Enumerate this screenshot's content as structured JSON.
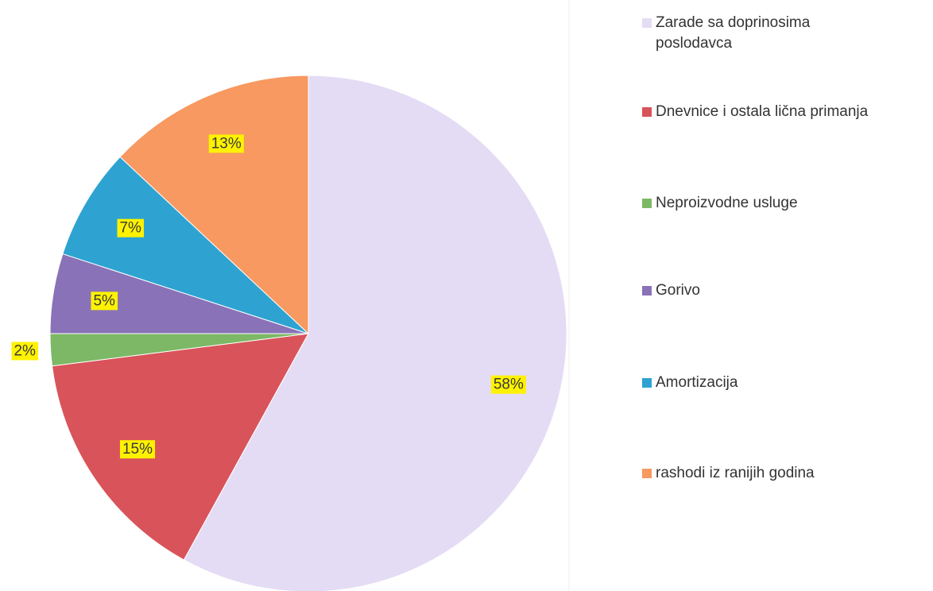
{
  "chart_data": {
    "type": "pie",
    "categories": [
      "Zarade sa doprinosima poslodavca",
      "Dnevnice i ostala lična primanja",
      "Neproizvodne usluge",
      "Gorivo",
      "Amortizacija",
      "rashodi iz ranijih godina"
    ],
    "values": [
      58,
      15,
      2,
      5,
      7,
      13
    ],
    "value_labels": [
      "58%",
      "15%",
      "2%",
      "5%",
      "7%",
      "13%"
    ],
    "colors": [
      "#e4dcf4",
      "#d9535a",
      "#7cb865",
      "#8a72b8",
      "#2ea3d1",
      "#f79960"
    ],
    "legend": "right"
  }
}
